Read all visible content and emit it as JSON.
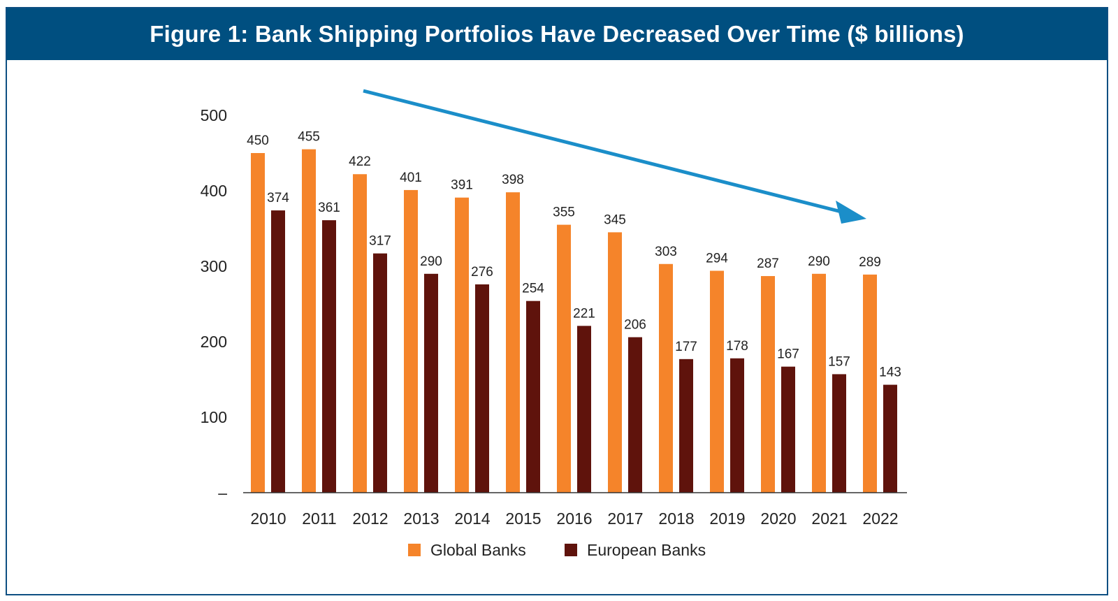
{
  "title": "Figure 1: Bank Shipping Portfolios Have Decreased Over Time ($ billions)",
  "colors": {
    "title_bg": "#004f80",
    "global": "#f5842a",
    "european": "#5f130c",
    "trend_arrow": "#1b8ec9",
    "frame": "#0d4f82"
  },
  "chart_data": {
    "type": "bar",
    "title": "Figure 1: Bank Shipping Portfolios Have Decreased Over Time ($ billions)",
    "xlabel": "",
    "ylabel": "",
    "ylim": [
      0,
      500
    ],
    "yticks": [
      0,
      100,
      200,
      300,
      400,
      500
    ],
    "ytick_labels": [
      "–",
      "100",
      "200",
      "300",
      "400",
      "500"
    ],
    "categories": [
      "2010",
      "2011",
      "2012",
      "2013",
      "2014",
      "2015",
      "2016",
      "2017",
      "2018",
      "2019",
      "2020",
      "2021",
      "2022"
    ],
    "series": [
      {
        "name": "Global Banks",
        "color": "#f5842a",
        "values": [
          450,
          455,
          422,
          401,
          391,
          398,
          355,
          345,
          303,
          294,
          287,
          290,
          289
        ]
      },
      {
        "name": "European Banks",
        "color": "#5f130c",
        "values": [
          374,
          361,
          317,
          290,
          276,
          254,
          221,
          206,
          177,
          178,
          167,
          157,
          143
        ]
      }
    ],
    "legend_position": "bottom",
    "grid": false,
    "annotations": [
      {
        "type": "trend-arrow",
        "direction": "downward",
        "from_category": "2012",
        "to_category": "2022"
      }
    ]
  }
}
